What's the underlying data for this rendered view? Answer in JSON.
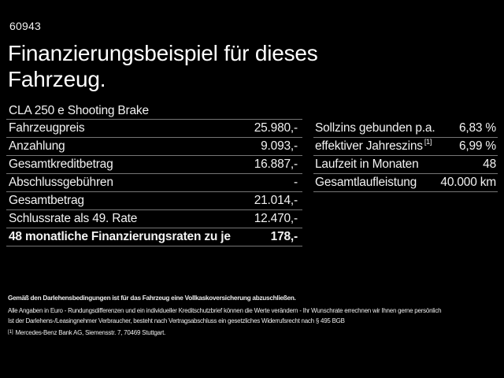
{
  "header": {
    "code": "60943",
    "title": "Finanzierungsbeispiel für dieses Fahrzeug.",
    "vehicle": "CLA 250 e Shooting Brake"
  },
  "left_table": {
    "rows": [
      {
        "label": "Fahrzeugpreis",
        "value": "25.980,-"
      },
      {
        "label": "Anzahlung",
        "value": "9.093,-"
      },
      {
        "label": "Gesamtkreditbetrag",
        "value": "16.887,-"
      },
      {
        "label": "Abschlussgebühren",
        "value": "-"
      },
      {
        "label": "Gesamtbetrag",
        "value": "21.014,-"
      },
      {
        "label": "Schlussrate als 49. Rate",
        "value": "12.470,-"
      },
      {
        "label": "48 monatliche Finanzierungsraten zu je",
        "value": "178,-",
        "bold": true
      }
    ]
  },
  "right_table": {
    "rows": [
      {
        "label": "Sollzins gebunden p.a.",
        "value": "6,83 %"
      },
      {
        "label": "effektiver Jahreszins",
        "sup": "[1]",
        "value": "6,99 %"
      },
      {
        "label": "Laufzeit in Monaten",
        "value": "48"
      },
      {
        "label": "Gesamtlaufleistung",
        "value": "40.000 km"
      }
    ]
  },
  "footer": {
    "line1": "Gemäß den Darlehensbedingungen ist für das Fahrzeug eine Vollkaskoversicherung abzuschließen.",
    "line2": "Alle Angaben in Euro - Rundungsdifferenzen und ein individueller Kreditschutzbrief können die Werte verändern - Ihr Wunschrate errechnen wir Ihnen gerne persönlich",
    "line3": "Ist der Darlehens-/Leasingnehmer Verbraucher, besteht nach Vertragsabschluss ein gesetzliches Widerrufsrecht nach § 495 BGB",
    "footnote_marker": "[1]",
    "footnote": "Mercedes-Benz Bank AG, Siemensstr. 7, 70469 Stuttgart."
  },
  "colors": {
    "background": "#000000",
    "text": "#f2f2f2",
    "divider": "#757575"
  }
}
